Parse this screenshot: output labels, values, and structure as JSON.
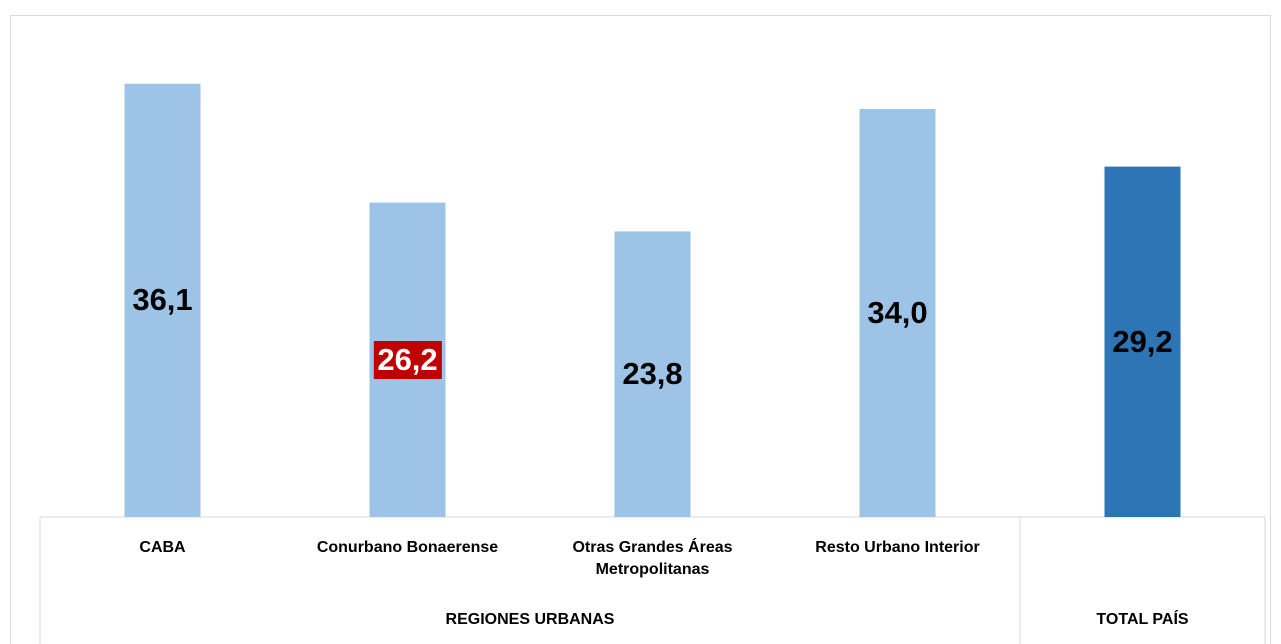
{
  "chart_data": {
    "type": "bar",
    "categories": [
      "CABA",
      "Conurbano Bonaerense",
      "Otras Grandes Áreas Metropolitanas",
      "Resto Urbano Interior",
      null
    ],
    "values": [
      36.1,
      26.2,
      23.8,
      34.0,
      29.2
    ],
    "value_labels": [
      "36,1",
      "26,2",
      "23,8",
      "34,0",
      "29,2"
    ],
    "colors": [
      "#9dc3e6",
      "#9dc3e6",
      "#9dc3e6",
      "#9dc3e6",
      "#2e75b6"
    ],
    "label_backgrounds": [
      null,
      "#c00000",
      null,
      null,
      null
    ],
    "groups": [
      {
        "name": "REGIONES URBANAS",
        "span": 4
      },
      {
        "name": "TOTAL PAÍS",
        "span": 1
      }
    ],
    "ylim": [
      0,
      40
    ]
  }
}
